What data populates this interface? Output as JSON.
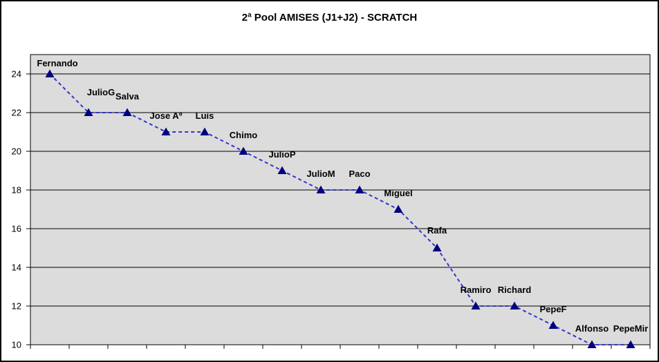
{
  "chart_data": {
    "type": "line",
    "title": "2ª Pool AMISES (J1+J2) - SCRATCH",
    "categories": [
      "Fernando",
      "JulioG",
      "Salva",
      "Jose Aº",
      "Luis",
      "Chimo",
      "JulioP",
      "JulioM",
      "Paco",
      "Miguel",
      "Rafa",
      "Ramiro",
      "Richard",
      "PepeF",
      "Alfonso",
      "PepeMir"
    ],
    "values": [
      24,
      22,
      22,
      21,
      21,
      20,
      19,
      18,
      18,
      17,
      15,
      12,
      12,
      11,
      10,
      10
    ],
    "xlabel": "",
    "ylabel": "",
    "ylim": [
      10,
      25
    ],
    "yticks": [
      10,
      12,
      14,
      16,
      18,
      20,
      22,
      24
    ],
    "grid": true,
    "legend": "none",
    "marker": "triangle-up",
    "line_style": "dashed",
    "point_labels_visible": true,
    "label_dx": [
      11,
      18,
      0,
      0,
      0,
      0,
      0,
      0,
      0,
      0,
      0,
      0,
      0,
      0,
      0,
      0
    ],
    "label_dy": [
      -22,
      -36,
      -30,
      -30,
      -30,
      -30,
      -30,
      -30,
      -30,
      -30,
      -32,
      -30,
      -30,
      -30,
      -30,
      -30
    ],
    "colors": {
      "marker": "#000080",
      "line": "#3333CC",
      "plot_bg": "#DCDCDC",
      "grid": "#000000",
      "axis": "#000000",
      "text": "#000000",
      "chart_bg": "#FFFFFF",
      "window_border": "#000000"
    }
  }
}
